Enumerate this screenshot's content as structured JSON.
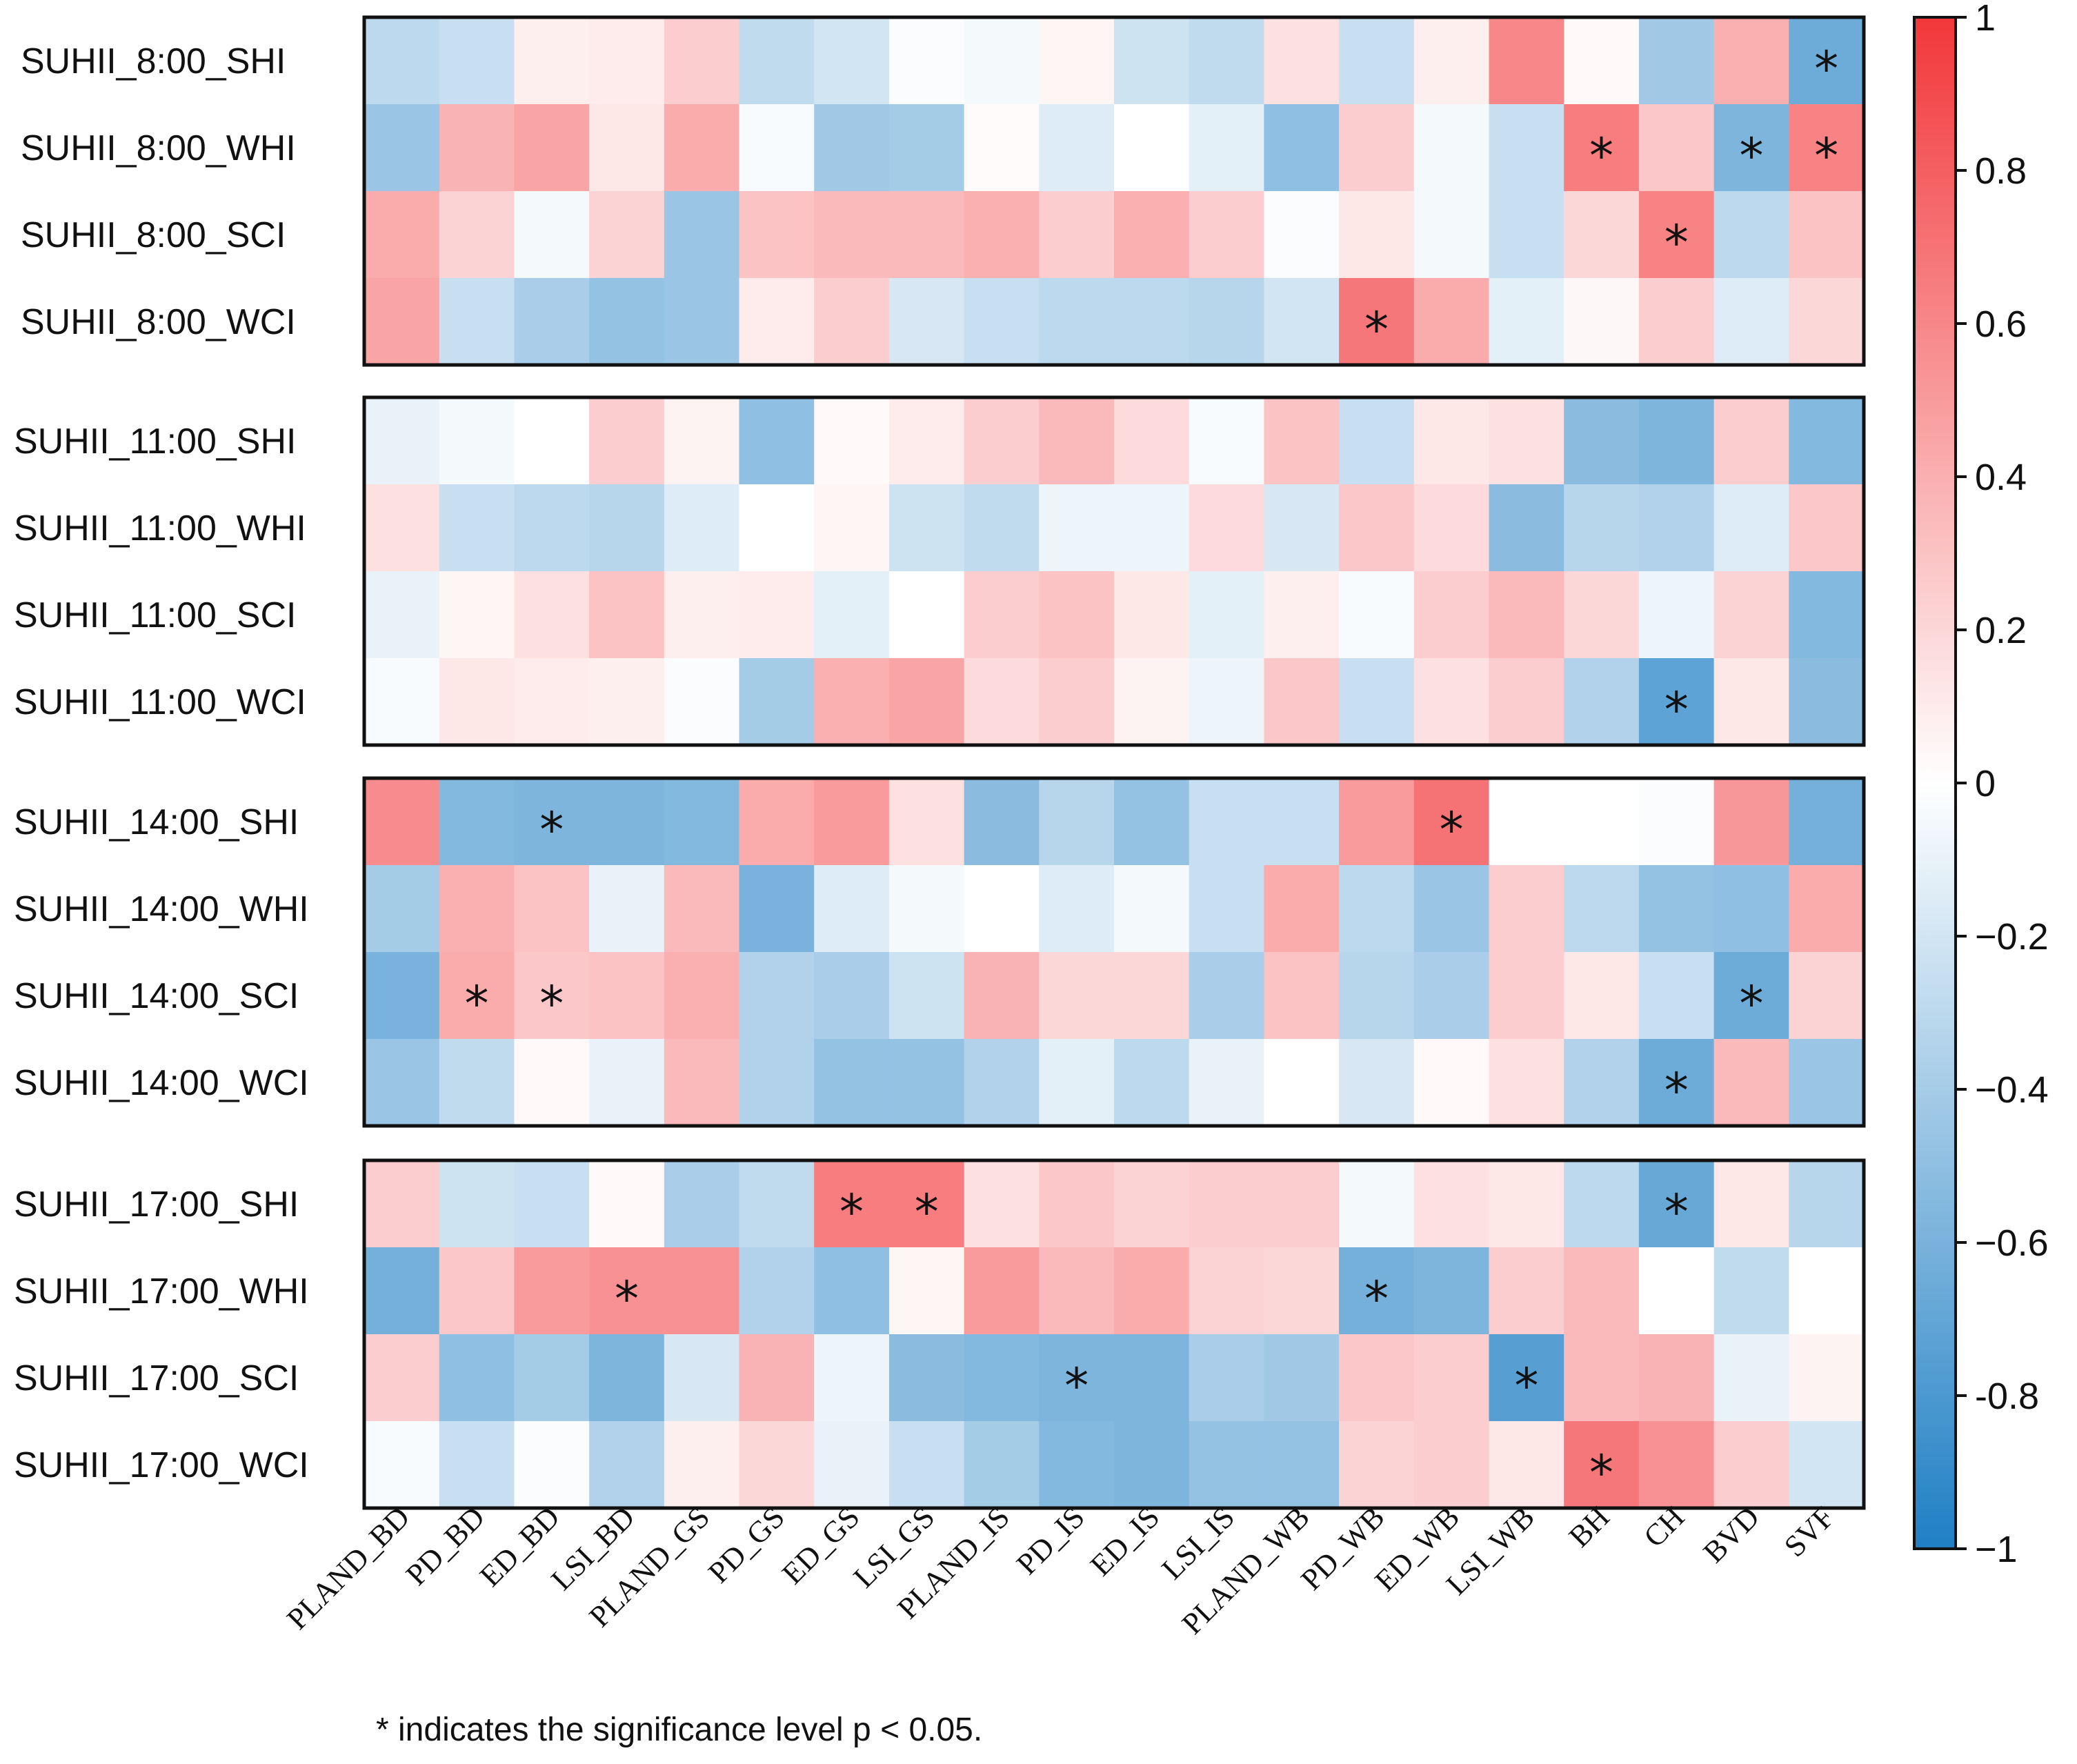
{
  "chart_data": {
    "type": "heatmap",
    "title": "",
    "columns": [
      "PLAND_BD",
      "PD_BD",
      "ED_BD",
      "LSI_BD",
      "PLAND_GS",
      "PD_GS",
      "ED_GS",
      "LSI_GS",
      "PLAND_IS",
      "PD_IS",
      "ED_IS",
      "LSI_IS",
      "PLAND_WB",
      "PD_WB",
      "ED_WB",
      "LSI_WB",
      "BH",
      "CH",
      "BVD",
      "SVF"
    ],
    "rows": [
      "SUHII_8:00_SHI",
      "SUHII_8:00_WHI",
      "SUHII_8:00_SCI",
      "SUHII_8:00_WCI",
      "SUHII_11:00_SHI",
      "SUHII_11:00_WHI",
      "SUHII_11:00_SCI",
      "SUHII_11:00_WCI",
      "SUHII_14:00_SHI",
      "SUHII_14:00_WHI",
      "SUHII_14:00_SCI",
      "SUHII_14:00_WCI",
      "SUHII_17:00_SHI",
      "SUHII_17:00_WHI",
      "SUHII_17:00_SCI",
      "SUHII_17:00_WCI"
    ],
    "groups": [
      [
        0,
        3
      ],
      [
        4,
        7
      ],
      [
        8,
        11
      ],
      [
        12,
        15
      ]
    ],
    "values": [
      [
        -0.3,
        -0.25,
        0.08,
        0.1,
        0.25,
        -0.28,
        -0.2,
        -0.02,
        -0.05,
        0.05,
        -0.22,
        -0.28,
        0.15,
        -0.25,
        0.08,
        0.6,
        0.03,
        -0.42,
        0.4,
        -0.65
      ],
      [
        -0.45,
        0.38,
        0.45,
        0.12,
        0.42,
        -0.03,
        -0.42,
        -0.4,
        0.02,
        -0.15,
        0.0,
        -0.12,
        -0.5,
        0.25,
        -0.05,
        -0.25,
        0.65,
        0.28,
        -0.58,
        0.62
      ],
      [
        0.42,
        0.22,
        -0.05,
        0.22,
        -0.45,
        0.3,
        0.35,
        0.35,
        0.4,
        0.25,
        0.4,
        0.25,
        -0.02,
        0.12,
        -0.05,
        -0.25,
        0.2,
        0.62,
        -0.3,
        0.3
      ],
      [
        0.45,
        -0.25,
        -0.38,
        -0.48,
        -0.45,
        0.1,
        0.25,
        -0.18,
        -0.25,
        -0.3,
        -0.3,
        -0.32,
        -0.2,
        0.68,
        0.42,
        -0.12,
        0.04,
        0.25,
        -0.15,
        0.2
      ],
      [
        -0.1,
        -0.05,
        0.0,
        0.25,
        0.06,
        -0.5,
        0.03,
        0.1,
        0.25,
        0.35,
        0.18,
        -0.03,
        0.3,
        -0.25,
        0.12,
        0.15,
        -0.52,
        -0.58,
        0.25,
        -0.55
      ],
      [
        0.15,
        -0.25,
        -0.3,
        -0.32,
        -0.15,
        0.0,
        0.05,
        -0.22,
        -0.28,
        -0.08,
        -0.08,
        0.18,
        -0.18,
        0.28,
        0.18,
        -0.52,
        -0.32,
        -0.35,
        -0.15,
        0.28
      ],
      [
        -0.1,
        0.05,
        0.15,
        0.3,
        0.08,
        0.1,
        -0.12,
        0.0,
        0.25,
        0.3,
        0.12,
        -0.12,
        0.08,
        -0.03,
        0.25,
        0.35,
        0.2,
        -0.08,
        0.22,
        -0.55
      ],
      [
        -0.03,
        0.12,
        0.1,
        0.08,
        -0.02,
        -0.4,
        0.4,
        0.45,
        0.18,
        0.25,
        0.06,
        -0.08,
        0.28,
        -0.25,
        0.15,
        0.25,
        -0.35,
        -0.72,
        0.12,
        -0.52
      ],
      [
        0.58,
        -0.55,
        -0.58,
        -0.58,
        -0.55,
        0.42,
        0.5,
        0.15,
        -0.52,
        -0.32,
        -0.48,
        -0.25,
        -0.25,
        0.5,
        0.7,
        0.0,
        0.0,
        -0.02,
        0.52,
        -0.62
      ],
      [
        -0.4,
        0.4,
        0.3,
        -0.1,
        0.35,
        -0.6,
        -0.15,
        -0.05,
        0.0,
        -0.15,
        -0.05,
        -0.25,
        0.42,
        -0.3,
        -0.45,
        0.25,
        -0.3,
        -0.48,
        -0.5,
        0.42
      ],
      [
        -0.6,
        0.42,
        0.28,
        0.3,
        0.4,
        -0.35,
        -0.38,
        -0.22,
        0.38,
        0.2,
        0.2,
        -0.38,
        0.3,
        -0.32,
        -0.38,
        0.25,
        0.12,
        -0.25,
        -0.65,
        0.22
      ],
      [
        -0.45,
        -0.28,
        0.03,
        -0.1,
        0.35,
        -0.35,
        -0.48,
        -0.48,
        -0.35,
        -0.12,
        -0.3,
        -0.1,
        0.0,
        -0.18,
        0.03,
        0.15,
        -0.35,
        -0.65,
        0.35,
        -0.45
      ],
      [
        0.25,
        -0.22,
        -0.25,
        0.03,
        -0.38,
        -0.28,
        0.65,
        0.65,
        0.15,
        0.28,
        0.22,
        0.25,
        0.25,
        -0.05,
        0.15,
        0.12,
        -0.3,
        -0.68,
        0.12,
        -0.32
      ],
      [
        -0.62,
        0.28,
        0.5,
        0.55,
        0.55,
        -0.35,
        -0.5,
        0.05,
        0.5,
        0.35,
        0.42,
        0.22,
        0.2,
        -0.62,
        -0.58,
        0.25,
        0.35,
        0.0,
        -0.28,
        0.0
      ],
      [
        0.25,
        -0.5,
        -0.4,
        -0.58,
        -0.18,
        0.38,
        -0.08,
        -0.52,
        -0.55,
        -0.58,
        -0.58,
        -0.38,
        -0.42,
        0.28,
        0.25,
        -0.75,
        0.35,
        0.38,
        -0.1,
        0.06
      ],
      [
        -0.03,
        -0.25,
        -0.02,
        -0.35,
        0.08,
        0.2,
        -0.1,
        -0.25,
        -0.4,
        -0.55,
        -0.58,
        -0.48,
        -0.48,
        0.22,
        0.25,
        0.12,
        0.68,
        0.55,
        0.25,
        -0.2
      ]
    ],
    "significant": [
      [
        0,
        19
      ],
      [
        1,
        16
      ],
      [
        1,
        18
      ],
      [
        1,
        19
      ],
      [
        2,
        17
      ],
      [
        3,
        13
      ],
      [
        7,
        17
      ],
      [
        8,
        2
      ],
      [
        8,
        14
      ],
      [
        10,
        1
      ],
      [
        10,
        2
      ],
      [
        10,
        18
      ],
      [
        11,
        17
      ],
      [
        12,
        6
      ],
      [
        12,
        7
      ],
      [
        12,
        17
      ],
      [
        13,
        3
      ],
      [
        13,
        13
      ],
      [
        14,
        9
      ],
      [
        14,
        15
      ],
      [
        15,
        16
      ]
    ],
    "significance_marker": "*",
    "colorbar": {
      "range": [
        -1,
        1
      ],
      "ticks": [
        "1",
        "0.8",
        "0.6",
        "0.4",
        "0.2",
        "0",
        "−0.2",
        "−0.4",
        "−0.6",
        "-0.8",
        "−1"
      ],
      "tick_values": [
        1,
        0.8,
        0.6,
        0.4,
        0.2,
        0,
        -0.2,
        -0.4,
        -0.6,
        -0.8,
        -1
      ],
      "low_color": "#1f7fc4",
      "mid_color": "#ffffff",
      "high_color": "#f2373a"
    },
    "footnote": "* indicates the significance level p < 0.05."
  }
}
